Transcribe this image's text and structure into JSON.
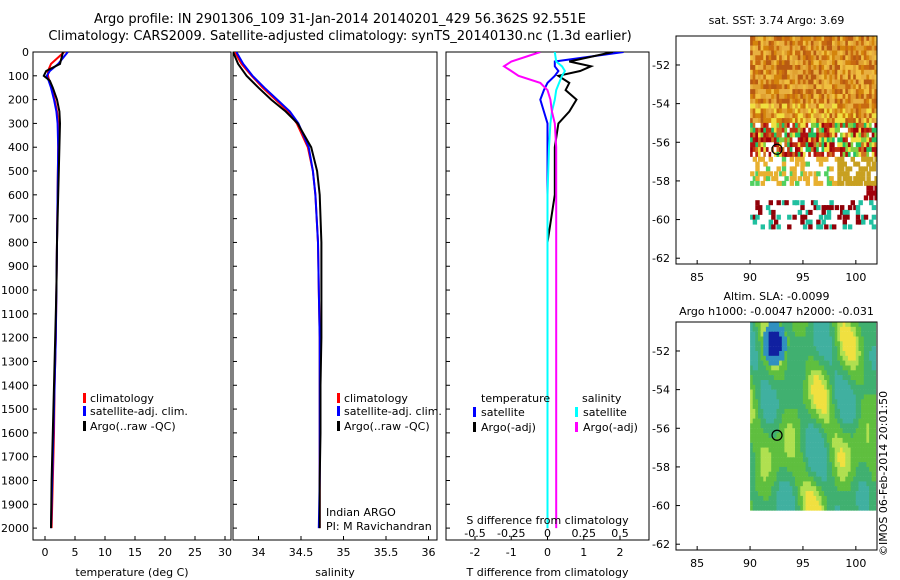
{
  "header": {
    "title_line1": "Argo profile: IN 2901306_109 31-Jan-2014 20140201_429 56.362S 92.551E",
    "title_line2": "Climatology: CARS2009. Satellite-adjusted climatology: synTS_20140130.nc (1.3d earlier)"
  },
  "credit": "©IMOS 06-Feb-2014 20:01:50",
  "colors": {
    "climatology": "#ff0000",
    "satellite": "#0000ff",
    "argo": "#000000",
    "argo_adj_salinity": "#ff00ff",
    "satellite_salinity": "#00ffff",
    "sst_high": "#d4840c",
    "sst_low": "#a0000a",
    "sla_base": "#5fbf3f"
  },
  "chart_data": [
    {
      "type": "line",
      "name": "temperature-panel",
      "xlabel": "temperature (deg C)",
      "ylabel": "",
      "xlim": [
        -2,
        31
      ],
      "ylim": [
        2050,
        0
      ],
      "xticks": [
        "0",
        "5",
        "10",
        "15",
        "20",
        "25",
        "30"
      ],
      "yticks": [
        "0",
        "100",
        "200",
        "300",
        "400",
        "500",
        "600",
        "700",
        "800",
        "900",
        "1000",
        "1100",
        "1200",
        "1300",
        "1400",
        "1500",
        "1600",
        "1700",
        "1800",
        "1900",
        "2000"
      ],
      "legend": [
        "climatology",
        "satellite-adj. clim.",
        "Argo(..raw -QC)"
      ],
      "depth": [
        0,
        50,
        80,
        100,
        120,
        150,
        200,
        250,
        300,
        400,
        600,
        800,
        1000,
        1200,
        1400,
        1600,
        1800,
        2000
      ],
      "series": [
        {
          "name": "climatology",
          "color": "#ff0000",
          "values": [
            3.2,
            1.0,
            0.5,
            0.5,
            0.7,
            1.2,
            1.6,
            2.0,
            2.2,
            2.2,
            2.1,
            2.0,
            1.9,
            1.8,
            1.6,
            1.5,
            1.3,
            1.1
          ]
        },
        {
          "name": "satellite-adj. clim.",
          "color": "#0000ff",
          "values": [
            3.8,
            2.2,
            0.8,
            0.3,
            0.6,
            1.0,
            1.5,
            1.9,
            2.1,
            2.2,
            2.1,
            2.0,
            1.9,
            1.8,
            1.6,
            1.4,
            1.2,
            1.0
          ]
        },
        {
          "name": "Argo(..raw -QC)",
          "color": "#000000",
          "values": [
            3.0,
            2.5,
            0.2,
            -0.2,
            0.8,
            1.3,
            2.0,
            2.4,
            2.5,
            2.4,
            2.2,
            2.0,
            1.9,
            1.7,
            1.5,
            1.3,
            1.1,
            1.0
          ]
        }
      ]
    },
    {
      "type": "line",
      "name": "salinity-panel",
      "xlabel": "salinity",
      "ylabel": "",
      "xlim": [
        33.7,
        36.1
      ],
      "ylim": [
        2050,
        0
      ],
      "xticks": [
        "34",
        "34.5",
        "35",
        "35.5",
        "36"
      ],
      "legend": [
        "climatology",
        "satellite-adj. clim.",
        "Argo(..raw -QC)"
      ],
      "annotation": [
        "Indian ARGO",
        "PI: M Ravichandran"
      ],
      "depth": [
        0,
        50,
        100,
        150,
        200,
        250,
        300,
        400,
        500,
        600,
        800,
        1000,
        1200,
        1400,
        1600,
        1800,
        2000
      ],
      "series": [
        {
          "name": "climatology",
          "color": "#ff0000",
          "values": [
            33.72,
            33.8,
            33.92,
            34.05,
            34.2,
            34.35,
            34.45,
            34.58,
            34.64,
            34.67,
            34.7,
            34.71,
            34.72,
            34.72,
            34.72,
            34.72,
            34.72
          ]
        },
        {
          "name": "satellite-adj. clim.",
          "color": "#0000ff",
          "values": [
            33.74,
            33.82,
            33.93,
            34.07,
            34.22,
            34.37,
            34.47,
            34.59,
            34.64,
            34.67,
            34.7,
            34.71,
            34.72,
            34.72,
            34.72,
            34.72,
            34.71
          ]
        },
        {
          "name": "Argo(..raw -QC)",
          "color": "#000000",
          "values": [
            33.7,
            33.76,
            33.86,
            34.0,
            34.15,
            34.32,
            34.46,
            34.62,
            34.69,
            34.72,
            34.74,
            34.74,
            34.74,
            34.73,
            34.73,
            34.72,
            34.72
          ]
        }
      ]
    },
    {
      "type": "line",
      "name": "difference-panel",
      "xlabel": "T difference from climatology",
      "xlabel2": "S difference from climatology",
      "xlim": [
        -2.8,
        2.8
      ],
      "ylim": [
        2050,
        0
      ],
      "xticks": [
        "-2",
        "-1",
        "0",
        "1",
        "2"
      ],
      "xticks2": [
        "-0.5",
        "-0.25",
        "0",
        "0.25",
        "0.5"
      ],
      "legend": {
        "temperature_heading": "temperature",
        "salinity_heading": "salinity",
        "items": [
          "satellite",
          "Argo(-adj)",
          "satellite",
          "Argo(-adj)"
        ]
      },
      "depth": [
        0,
        40,
        60,
        80,
        100,
        130,
        160,
        200,
        250,
        300,
        400,
        600,
        800,
        1000,
        1400,
        1800,
        2000
      ],
      "series": [
        {
          "name": "temperature satellite",
          "color": "#0000ff",
          "values": [
            2.1,
            0.2,
            0.2,
            0.3,
            0.2,
            0.0,
            -0.1,
            -0.2,
            -0.1,
            0.0,
            0.0,
            0.0,
            0.0,
            0.0,
            0.0,
            0.0,
            0.0
          ]
        },
        {
          "name": "temperature Argo(-adj)",
          "color": "#000000",
          "values": [
            1.8,
            0.6,
            1.2,
            0.9,
            0.3,
            0.6,
            0.5,
            0.8,
            0.6,
            0.3,
            0.2,
            0.2,
            0.0,
            0.0,
            0.0,
            0.0,
            0.0
          ]
        },
        {
          "name": "salinity satellite",
          "color": "#00ffff",
          "values": [
            0.05,
            0.06,
            0.1,
            0.12,
            0.1,
            0.08,
            0.06,
            0.05,
            0.03,
            0.02,
            0.01,
            0.0,
            0.0,
            0.0,
            0.0,
            0.0,
            0.0
          ]
        },
        {
          "name": "salinity Argo(-adj)",
          "color": "#ff00ff",
          "values": [
            -0.05,
            -0.25,
            -0.3,
            -0.25,
            -0.2,
            -0.05,
            0.0,
            0.02,
            0.03,
            0.05,
            0.06,
            0.06,
            0.06,
            0.06,
            0.06,
            0.06,
            0.06
          ]
        }
      ]
    },
    {
      "type": "heatmap",
      "name": "sst-map",
      "title": "sat. SST: 3.74  Argo: 3.69",
      "xlim": [
        83,
        102
      ],
      "ylim": [
        -62.3,
        -50.5
      ],
      "xticks": [
        "85",
        "90",
        "95",
        "100"
      ],
      "yticks": [
        "-52",
        "-54",
        "-56",
        "-58",
        "-60",
        "-62"
      ],
      "profile_location": [
        92.551,
        -56.362
      ]
    },
    {
      "type": "heatmap",
      "name": "sla-map",
      "title": "Altim. SLA: -0.0099",
      "subtitle": "Argo h1000: -0.0047  h2000: -0.031",
      "xlim": [
        83,
        102
      ],
      "ylim": [
        -62.3,
        -50.5
      ],
      "xticks": [
        "85",
        "90",
        "95",
        "100"
      ],
      "yticks": [
        "-52",
        "-54",
        "-56",
        "-58",
        "-60",
        "-62"
      ],
      "profile_location": [
        92.551,
        -56.362
      ]
    }
  ]
}
